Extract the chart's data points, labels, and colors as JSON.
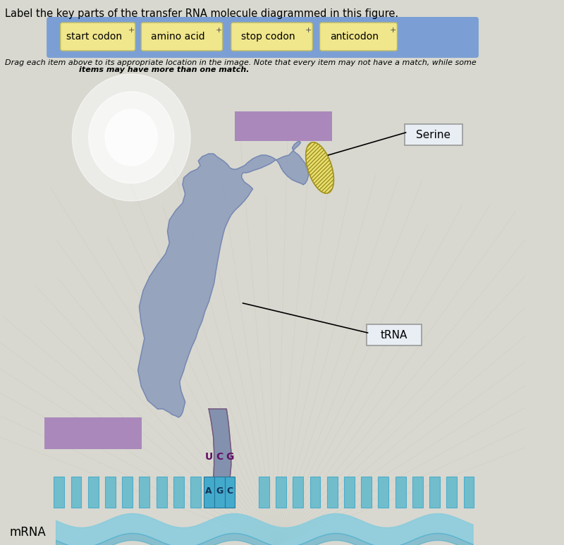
{
  "title": "Label the key parts of the transfer RNA molecule diagrammed in this figure.",
  "drag_instruction_1": "Drag each item above to its appropriate location in the image. Note that every item may not have a match, while some",
  "drag_instruction_2": "items may have more than one match.",
  "toolbar_items": [
    "start codon",
    "amino acid",
    "stop codon",
    "anticodon"
  ],
  "toolbar_bg": "#7b9fd4",
  "toolbar_item_bg": "#f0e68c",
  "label_serine": "Serine",
  "label_trna": "tRNA",
  "label_mrna": "mRNA",
  "codon_ucg": "UCG",
  "codon_agc": "AGC",
  "bg_color": "#d8d8d0",
  "trna_color": "#8899bb",
  "trna_color2": "#7788aa",
  "trna_outline": "#6677aa",
  "serine_color": "#e8e070",
  "serine_outline": "#a09020",
  "purple_box_color": "#aa88bb",
  "mrna_bar_color": "#66bbcc",
  "mrna_bar_dark": "#44aacc",
  "mrna_wave_color": "#88ccdd",
  "anticodon_color": "#996699",
  "anticodon_dark": "#775577",
  "radial_color": "#c8c8b8",
  "label_bg": "#e8eef4",
  "label_border": "#999999",
  "white_glow": "#ffffff"
}
